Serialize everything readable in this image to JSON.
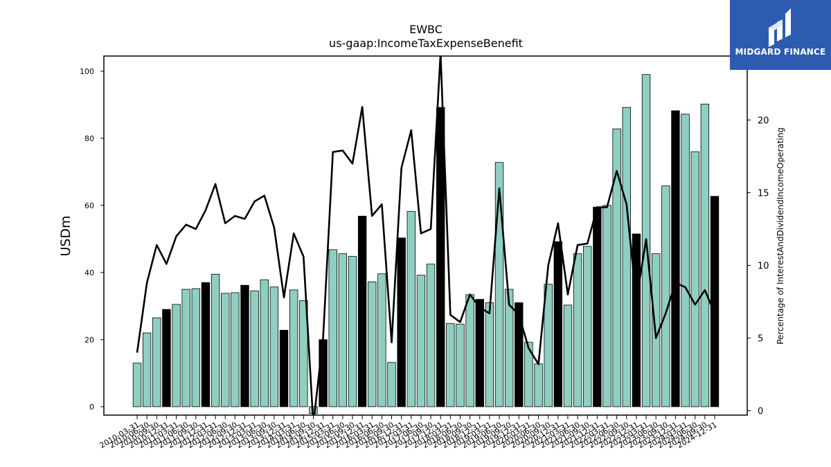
{
  "chart_data": {
    "type": "bar",
    "title": "EWBC",
    "subtitle": "us-gaap:IncomeTaxExpenseBenefit",
    "ylabel": "USDm",
    "y2label": "Percentage of InterestAndDividendIncomeOperating",
    "ylim": [
      -2.5,
      104.5
    ],
    "y2lim": [
      -0.3,
      24.4
    ],
    "yticks": [
      0,
      20,
      40,
      60,
      80,
      100
    ],
    "y2ticks": [
      0,
      5,
      10,
      15,
      20
    ],
    "grid": false,
    "categories": [
      "2010-03-31",
      "2010-06-30",
      "2010-09-30",
      "2010-12-31",
      "2011-03-31",
      "2011-06-30",
      "2011-09-30",
      "2011-12-31",
      "2012-03-31",
      "2012-06-30",
      "2012-09-30",
      "2012-12-31",
      "2013-03-31",
      "2013-06-30",
      "2013-09-30",
      "2013-12-31",
      "2014-03-31",
      "2014-06-30",
      "2014-09-30",
      "2014-12-31",
      "2015-03-31",
      "2015-06-30",
      "2015-09-30",
      "2015-12-31",
      "2016-03-31",
      "2016-06-30",
      "2016-09-30",
      "2016-12-31",
      "2017-03-31",
      "2017-06-30",
      "2017-09-30",
      "2017-12-31",
      "2018-03-31",
      "2018-06-30",
      "2018-09-30",
      "2018-12-31",
      "2019-03-31",
      "2019-06-30",
      "2019-09-30",
      "2019-12-31",
      "2020-03-31",
      "2020-06-30",
      "2020-09-30",
      "2020-12-31",
      "2021-03-31",
      "2021-06-30",
      "2021-09-30",
      "2021-12-31",
      "2022-03-31",
      "2022-06-30",
      "2022-09-30",
      "2022-12-31",
      "2023-03-31",
      "2023-06-30",
      "2023-09-30",
      "2023-12-31",
      "2024-03-31",
      "2024-06-30",
      "2024-09-30",
      "2024-12-31"
    ],
    "series": [
      {
        "type": "bar",
        "axis": "left",
        "values": [
          13,
          22,
          26.5,
          29,
          30.5,
          35,
          35.2,
          37,
          39.5,
          33.8,
          34,
          36.2,
          34.5,
          37.8,
          35.7,
          22.8,
          34.8,
          31.6,
          -2,
          20,
          46.8,
          45.6,
          44.8,
          56.8,
          37.2,
          39.6,
          13.2,
          50.3,
          58.2,
          39.2,
          42.5,
          89.2,
          24.8,
          24.6,
          33.4,
          32,
          31,
          72.8,
          35,
          31,
          19.2,
          12.8,
          36.5,
          49.2,
          30.3,
          45.6,
          47.8,
          59.5,
          60,
          82.8,
          89.2,
          51.5,
          99,
          45.6,
          65.8,
          88.2,
          87.2,
          76,
          90.2,
          62.7
        ],
        "highlight": [
          false,
          false,
          false,
          true,
          false,
          false,
          false,
          true,
          false,
          false,
          false,
          true,
          false,
          false,
          false,
          true,
          false,
          false,
          false,
          true,
          false,
          false,
          false,
          true,
          false,
          false,
          false,
          true,
          false,
          false,
          false,
          true,
          false,
          false,
          false,
          true,
          false,
          false,
          false,
          true,
          false,
          false,
          false,
          true,
          false,
          false,
          false,
          true,
          false,
          false,
          false,
          true,
          false,
          false,
          false,
          true,
          false,
          false,
          false,
          true
        ],
        "color": "#8ecfc2",
        "highlight_color": "#000000"
      },
      {
        "type": "line",
        "axis": "right",
        "values": [
          4,
          8.8,
          11.4,
          10.1,
          12,
          12.8,
          12.5,
          13.8,
          15.6,
          12.9,
          13.4,
          13.2,
          14.4,
          14.8,
          12.6,
          7.8,
          12.2,
          10.6,
          -0.9,
          5,
          17.8,
          17.9,
          17,
          20.9,
          13.4,
          14.2,
          4.7,
          16.7,
          19.3,
          12.2,
          12.5,
          24.6,
          6.6,
          6.1,
          8,
          7.1,
          6.7,
          15.3,
          7.3,
          6.6,
          4.3,
          3.2,
          10,
          12.9,
          8,
          11.4,
          11.5,
          14,
          14,
          16.5,
          14.2,
          7.6,
          11.8,
          5,
          6.7,
          8.8,
          8.5,
          7.3,
          8.3,
          6.7
        ],
        "color": "#000000"
      }
    ]
  },
  "logo": {
    "brand": "MIDGARD FINANCE",
    "color": "#2d5bb0"
  }
}
